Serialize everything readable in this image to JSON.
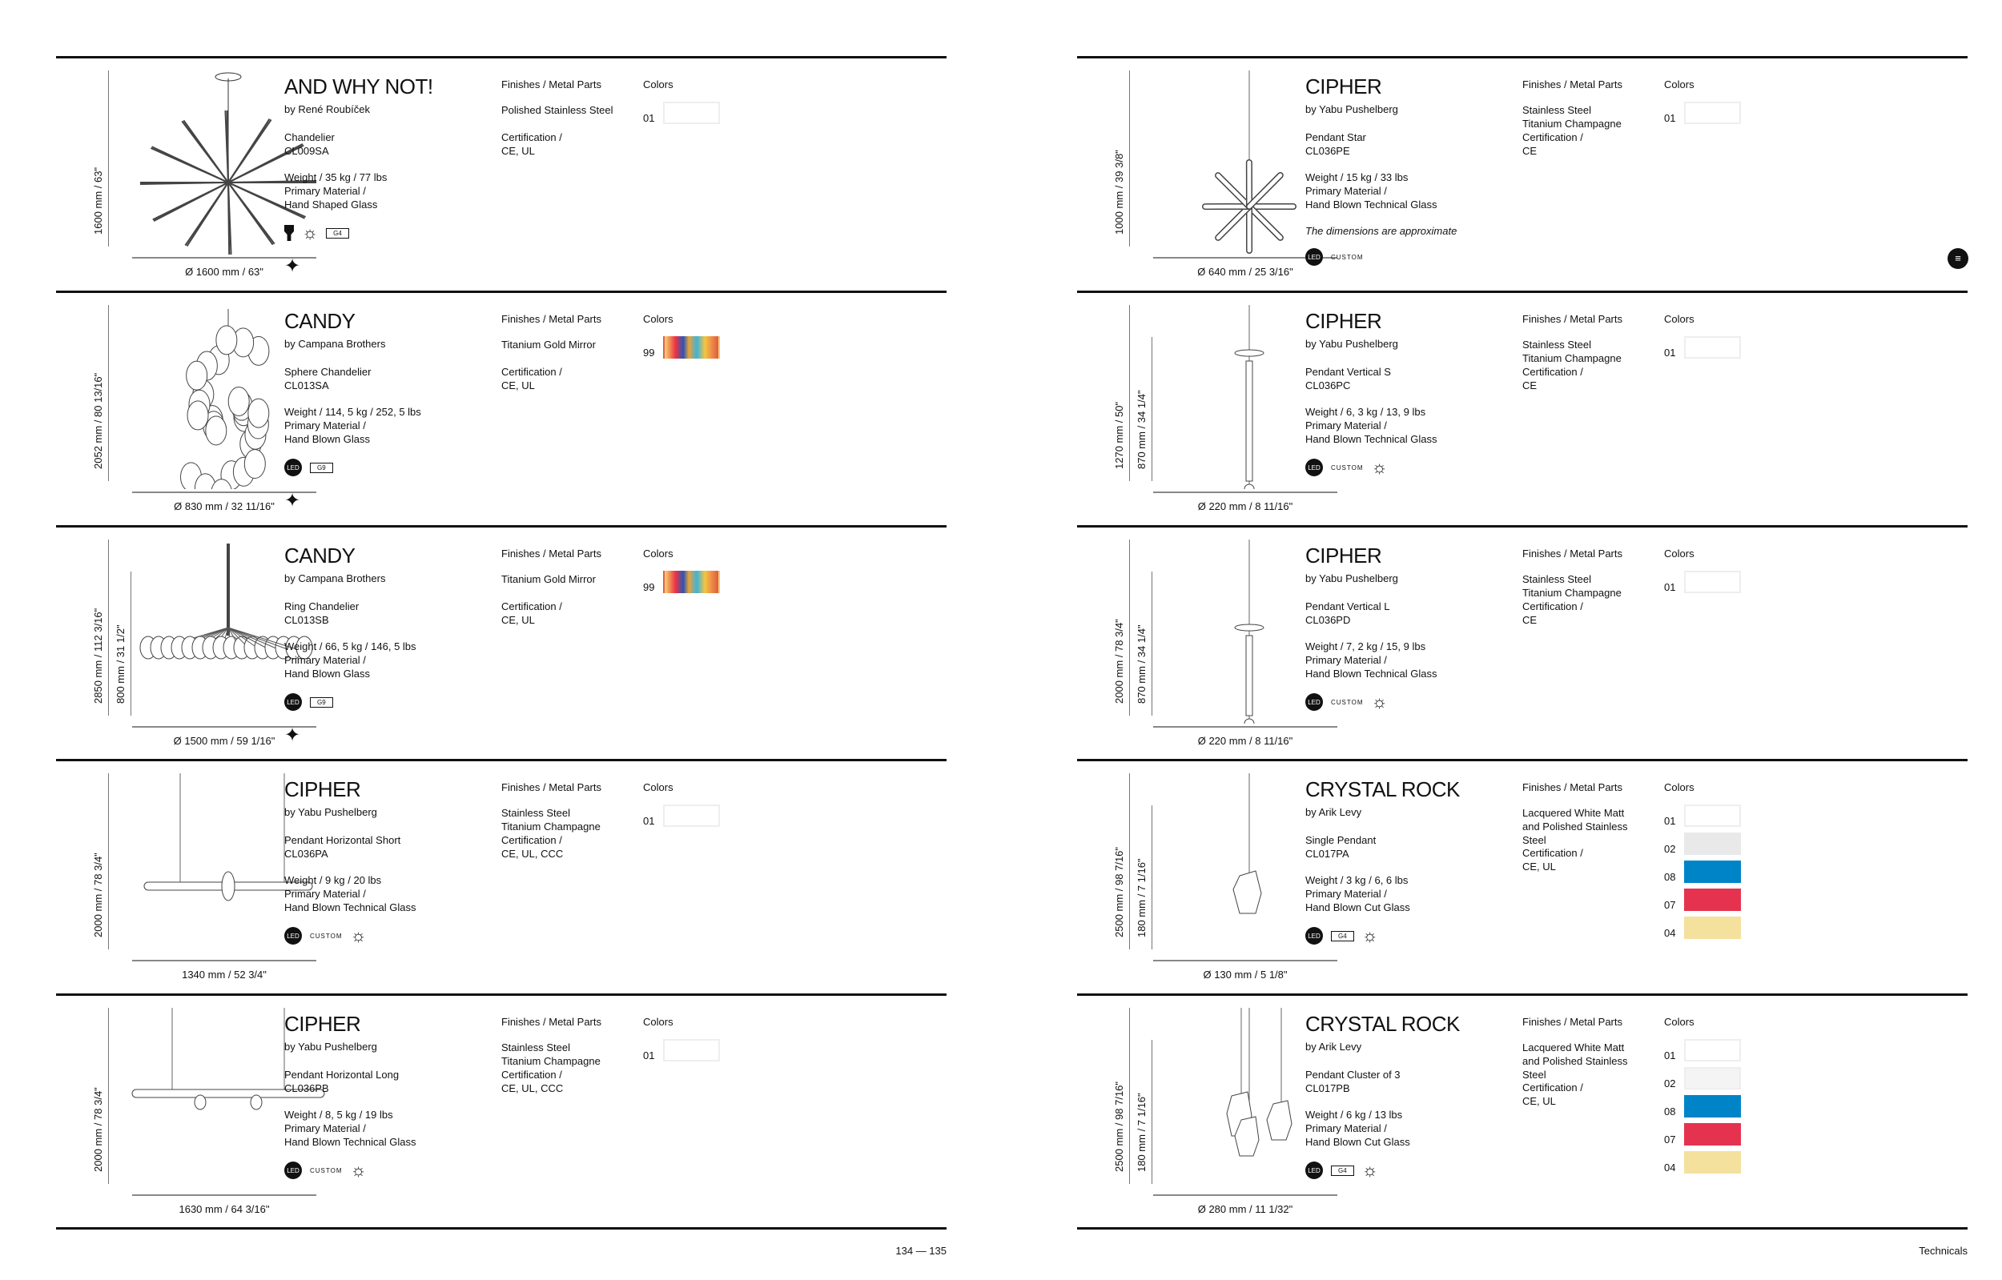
{
  "labels": {
    "finishes": "Finishes / Metal Parts",
    "colors": "Colors",
    "certification": "Certification /",
    "material": "Primary Material /",
    "custom": "CUSTOM",
    "led": "LED"
  },
  "left_page": {
    "page_numbers": "134 — 135",
    "rows": [
      {
        "name": "AND WHY NOT!",
        "designer": "by René Roubíček",
        "type": "Chandelier",
        "code": "CL009SA",
        "weight": "Weight / 35 kg / 77 lbs",
        "material": "Hand Shaped Glass",
        "finishes": [
          "Polished Stainless Steel"
        ],
        "certification": "CE, UL",
        "colors": [
          {
            "code": "01",
            "hex": "#ffffff"
          }
        ],
        "icons": [
          "bulb-icon",
          "dimmer-icon",
          "G4"
        ],
        "star": true,
        "heights": [
          "1600 mm / 63\""
        ],
        "diameter": "Ø 1600 mm / 63\""
      },
      {
        "name": "CANDY",
        "designer": "by Campana Brothers",
        "type": "Sphere Chandelier",
        "code": "CL013SA",
        "weight": "Weight / 114, 5 kg / 252, 5 lbs",
        "material": "Hand Blown Glass",
        "finishes": [
          "Titanium Gold Mirror"
        ],
        "certification": "CE, UL",
        "colors": [
          {
            "code": "99",
            "hex": "multicolor"
          }
        ],
        "icons": [
          "LED",
          "G9"
        ],
        "star": true,
        "heights": [
          "2052 mm / 80 13/16\""
        ],
        "diameter": "Ø 830 mm / 32 11/16\""
      },
      {
        "name": "CANDY",
        "designer": "by Campana Brothers",
        "type": "Ring Chandelier",
        "code": "CL013SB",
        "weight": "Weight / 66, 5 kg / 146, 5 lbs",
        "material": "Hand Blown Glass",
        "finishes": [
          "Titanium Gold Mirror"
        ],
        "certification": "CE, UL",
        "colors": [
          {
            "code": "99",
            "hex": "multicolor"
          }
        ],
        "icons": [
          "LED",
          "G9"
        ],
        "star": true,
        "heights": [
          "2850 mm / 112 3/16\"",
          "800 mm / 31 1/2\""
        ],
        "diameter": "Ø 1500 mm / 59 1/16\""
      },
      {
        "name": "CIPHER",
        "designer": "by Yabu Pushelberg",
        "type": "Pendant Horizontal Short",
        "code": "CL036PA",
        "weight": "Weight / 9 kg / 20 lbs",
        "material": "Hand Blown Technical Glass",
        "finishes": [
          "Stainless Steel",
          "Titanium Champagne"
        ],
        "certification": "CE, UL, CCC",
        "colors": [
          {
            "code": "01",
            "hex": "#ffffff"
          }
        ],
        "icons": [
          "LED",
          "CUSTOM",
          "dimmer-icon"
        ],
        "star": false,
        "heights": [
          "2000 mm / 78 3/4\""
        ],
        "diameter": "1340 mm / 52 3/4\""
      },
      {
        "name": "CIPHER",
        "designer": "by Yabu Pushelberg",
        "type": "Pendant Horizontal Long",
        "code": "CL036PB",
        "weight": "Weight / 8, 5 kg / 19 lbs",
        "material": "Hand Blown Technical Glass",
        "finishes": [
          "Stainless Steel",
          "Titanium Champagne"
        ],
        "certification": "CE, UL, CCC",
        "colors": [
          {
            "code": "01",
            "hex": "#ffffff"
          }
        ],
        "icons": [
          "LED",
          "CUSTOM",
          "dimmer-icon"
        ],
        "star": false,
        "heights": [
          "2000 mm / 78 3/4\""
        ],
        "diameter": "1630 mm / 64 3/16\""
      }
    ]
  },
  "right_page": {
    "section": "Technicals",
    "rows": [
      {
        "name": "CIPHER",
        "designer": "by Yabu Pushelberg",
        "type": "Pendant Star",
        "code": "CL036PE",
        "weight": "Weight / 15 kg / 33 lbs",
        "material": "Hand Blown Technical Glass",
        "note": "The dimensions are approximate",
        "finishes": [
          "Stainless Steel",
          "Titanium Champagne"
        ],
        "certification": "CE",
        "colors": [
          {
            "code": "01",
            "hex": "#ffffff"
          }
        ],
        "icons": [
          "LED",
          "CUSTOM"
        ],
        "star": false,
        "heights": [
          "1000 mm / 39 3/8\""
        ],
        "diameter": "Ø 640 mm / 25 3/16\""
      },
      {
        "name": "CIPHER",
        "designer": "by Yabu Pushelberg",
        "type": "Pendant Vertical S",
        "code": "CL036PC",
        "weight": "Weight / 6, 3 kg / 13, 9 lbs",
        "material": "Hand Blown Technical Glass",
        "finishes": [
          "Stainless Steel",
          "Titanium Champagne"
        ],
        "certification": "CE",
        "colors": [
          {
            "code": "01",
            "hex": "#ffffff"
          }
        ],
        "icons": [
          "LED",
          "CUSTOM",
          "dimmer-icon"
        ],
        "star": false,
        "heights": [
          "1270 mm / 50\"",
          "870 mm / 34 1/4\""
        ],
        "diameter": "Ø 220 mm / 8 11/16\""
      },
      {
        "name": "CIPHER",
        "designer": "by Yabu Pushelberg",
        "type": "Pendant Vertical L",
        "code": "CL036PD",
        "weight": "Weight / 7, 2 kg / 15, 9 lbs",
        "material": "Hand Blown Technical Glass",
        "finishes": [
          "Stainless Steel",
          "Titanium Champagne"
        ],
        "certification": "CE",
        "colors": [
          {
            "code": "01",
            "hex": "#ffffff"
          }
        ],
        "icons": [
          "LED",
          "CUSTOM",
          "dimmer-icon"
        ],
        "star": false,
        "heights": [
          "2000 mm / 78 3/4\"",
          "870 mm / 34 1/4\""
        ],
        "diameter": "Ø 220 mm / 8 11/16\""
      },
      {
        "name": "CRYSTAL ROCK",
        "designer": "by Arik Levy",
        "type": "Single Pendant",
        "code": "CL017PA",
        "weight": "Weight / 3 kg / 6, 6 lbs",
        "material": "Hand Blown Cut Glass",
        "finishes": [
          "Lacquered White Matt",
          "and Polished Stainless",
          "Steel"
        ],
        "certification": "CE, UL",
        "colors": [
          {
            "code": "01",
            "hex": "#ffffff"
          },
          {
            "code": "02",
            "hex": "#e9e9ea"
          },
          {
            "code": "08",
            "hex": "#0084c8"
          },
          {
            "code": "07",
            "hex": "#e5334f"
          },
          {
            "code": "04",
            "hex": "#f5e19e"
          }
        ],
        "icons": [
          "LED",
          "G4",
          "dimmer-icon"
        ],
        "star": false,
        "heights": [
          "2500 mm / 98 7/16\"",
          "180 mm / 7 1/16\""
        ],
        "diameter": "Ø 130 mm / 5 1/8\""
      },
      {
        "name": "CRYSTAL ROCK",
        "designer": "by Arik Levy",
        "type": "Pendant Cluster of 3",
        "code": "CL017PB",
        "weight": "Weight / 6 kg / 13 lbs",
        "material": "Hand Blown Cut Glass",
        "finishes": [
          "Lacquered White Matt",
          "and Polished Stainless",
          "Steel"
        ],
        "certification": "CE, UL",
        "colors": [
          {
            "code": "01",
            "hex": "#ffffff"
          },
          {
            "code": "02",
            "hex": "#f4f4f4"
          },
          {
            "code": "08",
            "hex": "#0084c8"
          },
          {
            "code": "07",
            "hex": "#e5334f"
          },
          {
            "code": "04",
            "hex": "#f5e19e"
          }
        ],
        "icons": [
          "LED",
          "G4",
          "dimmer-icon"
        ],
        "star": false,
        "heights": [
          "2500 mm / 98 7/16\"",
          "180 mm / 7 1/16\""
        ],
        "diameter": "Ø 280 mm / 11 1/32\""
      }
    ]
  }
}
